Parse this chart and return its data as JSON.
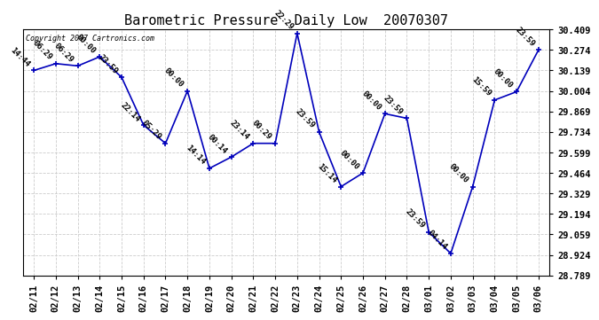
{
  "title": "Barometric Pressure  Daily Low  20070307",
  "copyright": "Copyright 2007 Cartronics.com",
  "dates": [
    "02/11",
    "02/12",
    "02/13",
    "02/14",
    "02/15",
    "02/16",
    "02/17",
    "02/18",
    "02/19",
    "02/20",
    "02/21",
    "02/22",
    "02/23",
    "02/24",
    "02/25",
    "02/26",
    "02/27",
    "02/28",
    "03/01",
    "03/02",
    "03/03",
    "03/04",
    "03/05",
    "03/06"
  ],
  "values": [
    30.139,
    30.184,
    30.169,
    30.229,
    30.094,
    29.779,
    29.659,
    30.004,
    29.494,
    29.569,
    29.659,
    29.659,
    30.384,
    29.734,
    29.374,
    29.464,
    29.854,
    29.824,
    29.074,
    28.934,
    29.374,
    29.944,
    29.999,
    30.274
  ],
  "labels": [
    "14:44",
    "06:29",
    "06:29",
    "00:00",
    "23:59",
    "22:14",
    "05:29",
    "00:00",
    "14:14",
    "00:14",
    "23:14",
    "00:29",
    "22:29",
    "23:59",
    "15:14",
    "00:00",
    "00:00",
    "23:59",
    "23:59",
    "04:14",
    "00:00",
    "15:59",
    "00:00",
    "23:59"
  ],
  "line_color": "#0000bb",
  "marker_color": "#0000bb",
  "bg_color": "#ffffff",
  "grid_color": "#cccccc",
  "title_fontsize": 11,
  "label_fontsize": 6.5,
  "tick_fontsize": 7.5,
  "ytick_step": 0.135,
  "ymin": 28.789,
  "ymax": 30.409
}
